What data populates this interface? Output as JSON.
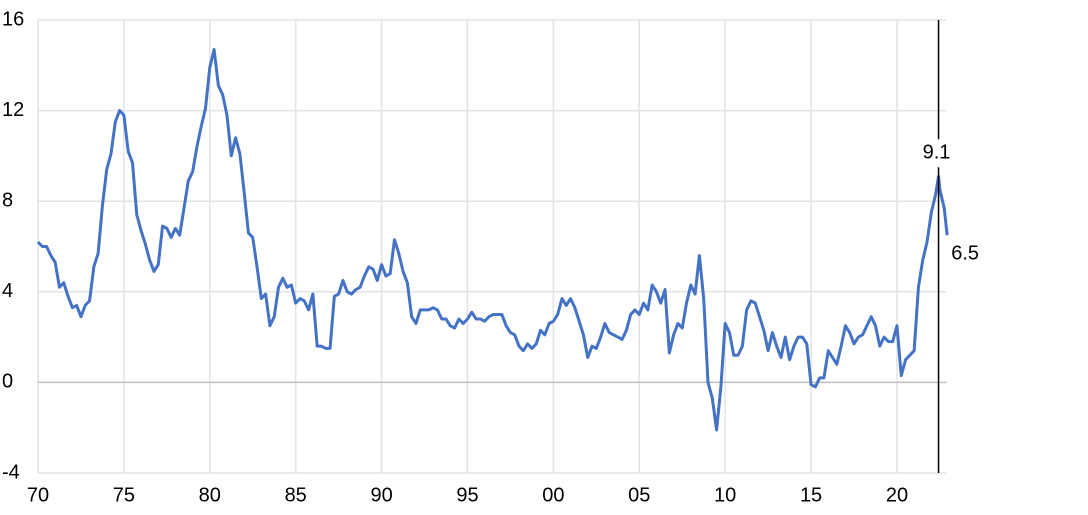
{
  "chart_data": {
    "type": "line",
    "x": [
      1970,
      1970.25,
      1970.5,
      1970.75,
      1971,
      1971.25,
      1971.5,
      1971.75,
      1972,
      1972.25,
      1972.5,
      1972.75,
      1973,
      1973.25,
      1973.5,
      1973.75,
      1974,
      1974.25,
      1974.5,
      1974.75,
      1975,
      1975.25,
      1975.5,
      1975.75,
      1976,
      1976.25,
      1976.5,
      1976.75,
      1977,
      1977.25,
      1977.5,
      1977.75,
      1978,
      1978.25,
      1978.5,
      1978.75,
      1979,
      1979.25,
      1979.5,
      1979.75,
      1980,
      1980.25,
      1980.5,
      1980.75,
      1981,
      1981.25,
      1981.5,
      1981.75,
      1982,
      1982.25,
      1982.5,
      1982.75,
      1983,
      1983.25,
      1983.5,
      1983.75,
      1984,
      1984.25,
      1984.5,
      1984.75,
      1985,
      1985.25,
      1985.5,
      1985.75,
      1986,
      1986.25,
      1986.5,
      1986.75,
      1987,
      1987.25,
      1987.5,
      1987.75,
      1988,
      1988.25,
      1988.5,
      1988.75,
      1989,
      1989.25,
      1989.5,
      1989.75,
      1990,
      1990.25,
      1990.5,
      1990.75,
      1991,
      1991.25,
      1991.5,
      1991.75,
      1992,
      1992.25,
      1992.5,
      1992.75,
      1993,
      1993.25,
      1993.5,
      1993.75,
      1994,
      1994.25,
      1994.5,
      1994.75,
      1995,
      1995.25,
      1995.5,
      1995.75,
      1996,
      1996.25,
      1996.5,
      1996.75,
      1997,
      1997.25,
      1997.5,
      1997.75,
      1998,
      1998.25,
      1998.5,
      1998.75,
      1999,
      1999.25,
      1999.5,
      1999.75,
      2000,
      2000.25,
      2000.5,
      2000.75,
      2001,
      2001.25,
      2001.5,
      2001.75,
      2002,
      2002.25,
      2002.5,
      2002.75,
      2003,
      2003.25,
      2003.5,
      2003.75,
      2004,
      2004.25,
      2004.5,
      2004.75,
      2005,
      2005.25,
      2005.5,
      2005.75,
      2006,
      2006.25,
      2006.5,
      2006.75,
      2007,
      2007.25,
      2007.5,
      2007.75,
      2008,
      2008.25,
      2008.5,
      2008.75,
      2009,
      2009.25,
      2009.5,
      2009.75,
      2010,
      2010.25,
      2010.5,
      2010.75,
      2011,
      2011.25,
      2011.5,
      2011.75,
      2012,
      2012.25,
      2012.5,
      2012.75,
      2013,
      2013.25,
      2013.5,
      2013.75,
      2014,
      2014.25,
      2014.5,
      2014.75,
      2015,
      2015.25,
      2015.5,
      2015.75,
      2016,
      2016.25,
      2016.5,
      2016.75,
      2017,
      2017.25,
      2017.5,
      2017.75,
      2018,
      2018.25,
      2018.5,
      2018.75,
      2019,
      2019.25,
      2019.5,
      2019.75,
      2020,
      2020.25,
      2020.5,
      2020.75,
      2021,
      2021.25,
      2021.5,
      2021.75,
      2022,
      2022.25,
      2022.42,
      2022.5,
      2022.75,
      2022.92
    ],
    "series": [
      {
        "color": "#4472c4",
        "values": [
          6.2,
          6.0,
          6.0,
          5.6,
          5.3,
          4.2,
          4.4,
          3.8,
          3.3,
          3.4,
          2.9,
          3.4,
          3.6,
          5.1,
          5.7,
          7.8,
          9.4,
          10.1,
          11.5,
          12.0,
          11.8,
          10.2,
          9.7,
          7.4,
          6.7,
          6.1,
          5.4,
          4.9,
          5.2,
          6.9,
          6.8,
          6.4,
          6.8,
          6.5,
          7.7,
          8.9,
          9.3,
          10.4,
          11.3,
          12.1,
          13.9,
          14.7,
          13.1,
          12.7,
          11.8,
          10.0,
          10.8,
          10.1,
          8.4,
          6.6,
          6.4,
          5.1,
          3.7,
          3.9,
          2.5,
          2.9,
          4.2,
          4.6,
          4.2,
          4.3,
          3.5,
          3.7,
          3.6,
          3.2,
          3.9,
          1.6,
          1.6,
          1.5,
          1.5,
          3.8,
          3.9,
          4.5,
          4.0,
          3.9,
          4.1,
          4.2,
          4.7,
          5.1,
          5.0,
          4.5,
          5.2,
          4.7,
          4.8,
          6.3,
          5.7,
          4.9,
          4.4,
          2.9,
          2.6,
          3.2,
          3.2,
          3.2,
          3.3,
          3.2,
          2.8,
          2.8,
          2.5,
          2.4,
          2.8,
          2.6,
          2.8,
          3.1,
          2.8,
          2.8,
          2.7,
          2.9,
          3.0,
          3.0,
          3.0,
          2.5,
          2.2,
          2.1,
          1.6,
          1.4,
          1.7,
          1.5,
          1.7,
          2.3,
          2.1,
          2.6,
          2.7,
          3.0,
          3.7,
          3.4,
          3.7,
          3.3,
          2.7,
          2.1,
          1.1,
          1.6,
          1.5,
          2.0,
          2.6,
          2.2,
          2.1,
          2.0,
          1.9,
          2.3,
          3.0,
          3.2,
          3.0,
          3.5,
          3.2,
          4.3,
          4.0,
          3.5,
          4.1,
          1.3,
          2.1,
          2.6,
          2.4,
          3.5,
          4.3,
          3.9,
          5.6,
          3.7,
          0.0,
          -0.7,
          -2.1,
          -0.2,
          2.6,
          2.2,
          1.2,
          1.2,
          1.6,
          3.2,
          3.6,
          3.5,
          2.9,
          2.3,
          1.4,
          2.2,
          1.6,
          1.1,
          2.0,
          1.0,
          1.6,
          2.0,
          2.0,
          1.7,
          -0.1,
          -0.2,
          0.2,
          0.2,
          1.4,
          1.1,
          0.8,
          1.6,
          2.5,
          2.2,
          1.7,
          2.0,
          2.1,
          2.5,
          2.9,
          2.5,
          1.6,
          2.0,
          1.8,
          1.8,
          2.5,
          0.3,
          1.0,
          1.2,
          1.4,
          4.2,
          5.4,
          6.2,
          7.5,
          8.3,
          9.1,
          8.5,
          7.7,
          6.5
        ]
      }
    ],
    "xlim": [
      1970,
      2023
    ],
    "ylim": [
      -4,
      16
    ],
    "xticks": [
      {
        "value": 1970,
        "label": "70"
      },
      {
        "value": 1975,
        "label": "75"
      },
      {
        "value": 1980,
        "label": "80"
      },
      {
        "value": 1985,
        "label": "85"
      },
      {
        "value": 1990,
        "label": "90"
      },
      {
        "value": 1995,
        "label": "95"
      },
      {
        "value": 2000,
        "label": "00"
      },
      {
        "value": 2005,
        "label": "05"
      },
      {
        "value": 2010,
        "label": "10"
      },
      {
        "value": 2015,
        "label": "15"
      },
      {
        "value": 2020,
        "label": "20"
      }
    ],
    "yticks": [
      -4,
      0,
      4,
      8,
      12,
      16
    ],
    "grid": true,
    "annotations": [
      {
        "text": "9.1",
        "x": 2022.42,
        "y": 9.1
      },
      {
        "text": "6.5",
        "x": 2022.92,
        "y": 6.5
      }
    ]
  }
}
